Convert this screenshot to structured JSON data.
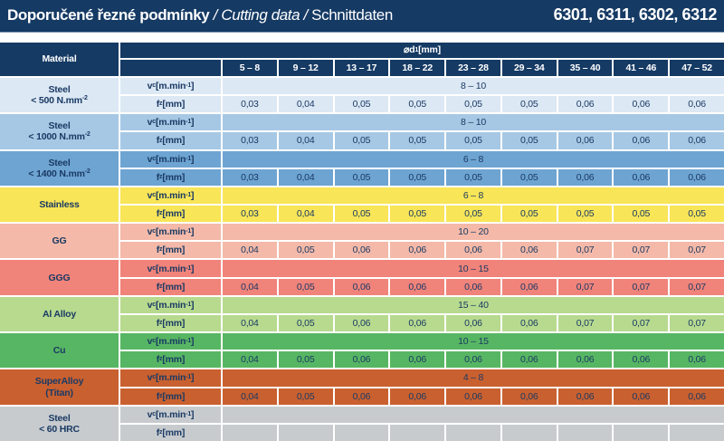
{
  "banner": {
    "title_bold": "Doporučené řezné podmínky",
    "separator": " / ",
    "title_italic": "Cutting data",
    "title_regular": "Schnittdaten",
    "codes": "6301, 6311, 6302, 6312",
    "bg": "#153a64",
    "text_color": "#ffffff"
  },
  "table": {
    "header_bg": "#153a64",
    "header_text_color": "#ffffff",
    "body_text_color": "#1a3a64",
    "material_header": "Material",
    "d1_header": {
      "prefix": "⌀ ",
      "symbol": "d",
      "sub": "1",
      "suffix": " [mm]"
    },
    "columns": [
      "5 – 8",
      "9 – 12",
      "13 – 17",
      "18 – 22",
      "23 – 28",
      "29 – 34",
      "35 – 40",
      "41 – 46",
      "47 – 52"
    ],
    "params": {
      "vc": {
        "symbol": "v",
        "sub": "c",
        "unit_pre": " [m.min",
        "unit_sup": "-1",
        "unit_post": "]"
      },
      "fz": {
        "symbol": "f",
        "sub": "z",
        "unit_pre": " [mm]",
        "unit_sup": "",
        "unit_post": ""
      }
    },
    "materials": [
      {
        "line1": "Steel",
        "line2": "< 500 N.mm",
        "line2_sup": "-2",
        "color": "#dce8f4",
        "vc": "8 – 10",
        "fz": [
          "0,03",
          "0,04",
          "0,05",
          "0,05",
          "0,05",
          "0,05",
          "0,06",
          "0,06",
          "0,06"
        ]
      },
      {
        "line1": "Steel",
        "line2": "< 1000 N.mm",
        "line2_sup": "-2",
        "color": "#a6c8e4",
        "vc": "8 – 10",
        "fz": [
          "0,03",
          "0,04",
          "0,05",
          "0,05",
          "0,05",
          "0,05",
          "0,06",
          "0,06",
          "0,06"
        ]
      },
      {
        "line1": "Steel",
        "line2": "< 1400 N.mm",
        "line2_sup": "-2",
        "color": "#6ea4d2",
        "vc": "6 – 8",
        "fz": [
          "0,03",
          "0,04",
          "0,05",
          "0,05",
          "0,05",
          "0,05",
          "0,06",
          "0,06",
          "0,06"
        ]
      },
      {
        "line1": "Stainless",
        "line2": null,
        "line2_sup": null,
        "color": "#f8e558",
        "vc": "6 – 8",
        "fz": [
          "0,03",
          "0,04",
          "0,05",
          "0,05",
          "0,05",
          "0,05",
          "0,05",
          "0,05",
          "0,05"
        ]
      },
      {
        "line1": "GG",
        "line2": null,
        "line2_sup": null,
        "color": "#f4b9a8",
        "vc": "10 – 20",
        "fz": [
          "0,04",
          "0,05",
          "0,06",
          "0,06",
          "0,06",
          "0,06",
          "0,07",
          "0,07",
          "0,07"
        ]
      },
      {
        "line1": "GGG",
        "line2": null,
        "line2_sup": null,
        "color": "#f0837a",
        "vc": "10 – 15",
        "fz": [
          "0,04",
          "0,05",
          "0,06",
          "0,06",
          "0,06",
          "0,06",
          "0,07",
          "0,07",
          "0,07"
        ]
      },
      {
        "line1": "Al Alloy",
        "line2": null,
        "line2_sup": null,
        "color": "#b7da8e",
        "vc": "15 – 40",
        "fz": [
          "0,04",
          "0,05",
          "0,06",
          "0,06",
          "0,06",
          "0,06",
          "0,07",
          "0,07",
          "0,07"
        ]
      },
      {
        "line1": "Cu",
        "line2": null,
        "line2_sup": null,
        "color": "#57b663",
        "vc": "10 – 15",
        "fz": [
          "0,04",
          "0,05",
          "0,06",
          "0,06",
          "0,06",
          "0,06",
          "0,06",
          "0,06",
          "0,06"
        ]
      },
      {
        "line1": "SuperAlloy",
        "line2": "(Titan)",
        "line2_sup": null,
        "color": "#c9602f",
        "vc": "4 – 8",
        "fz": [
          "0,04",
          "0,05",
          "0,06",
          "0,06",
          "0,06",
          "0,06",
          "0,06",
          "0,06",
          "0,06"
        ]
      },
      {
        "line1": "Steel",
        "line2": "< 60 HRC",
        "line2_sup": null,
        "color": "#c7cbce",
        "vc": "",
        "fz": [
          "",
          "",
          "",
          "",
          "",
          "",
          "",
          "",
          ""
        ]
      }
    ]
  }
}
